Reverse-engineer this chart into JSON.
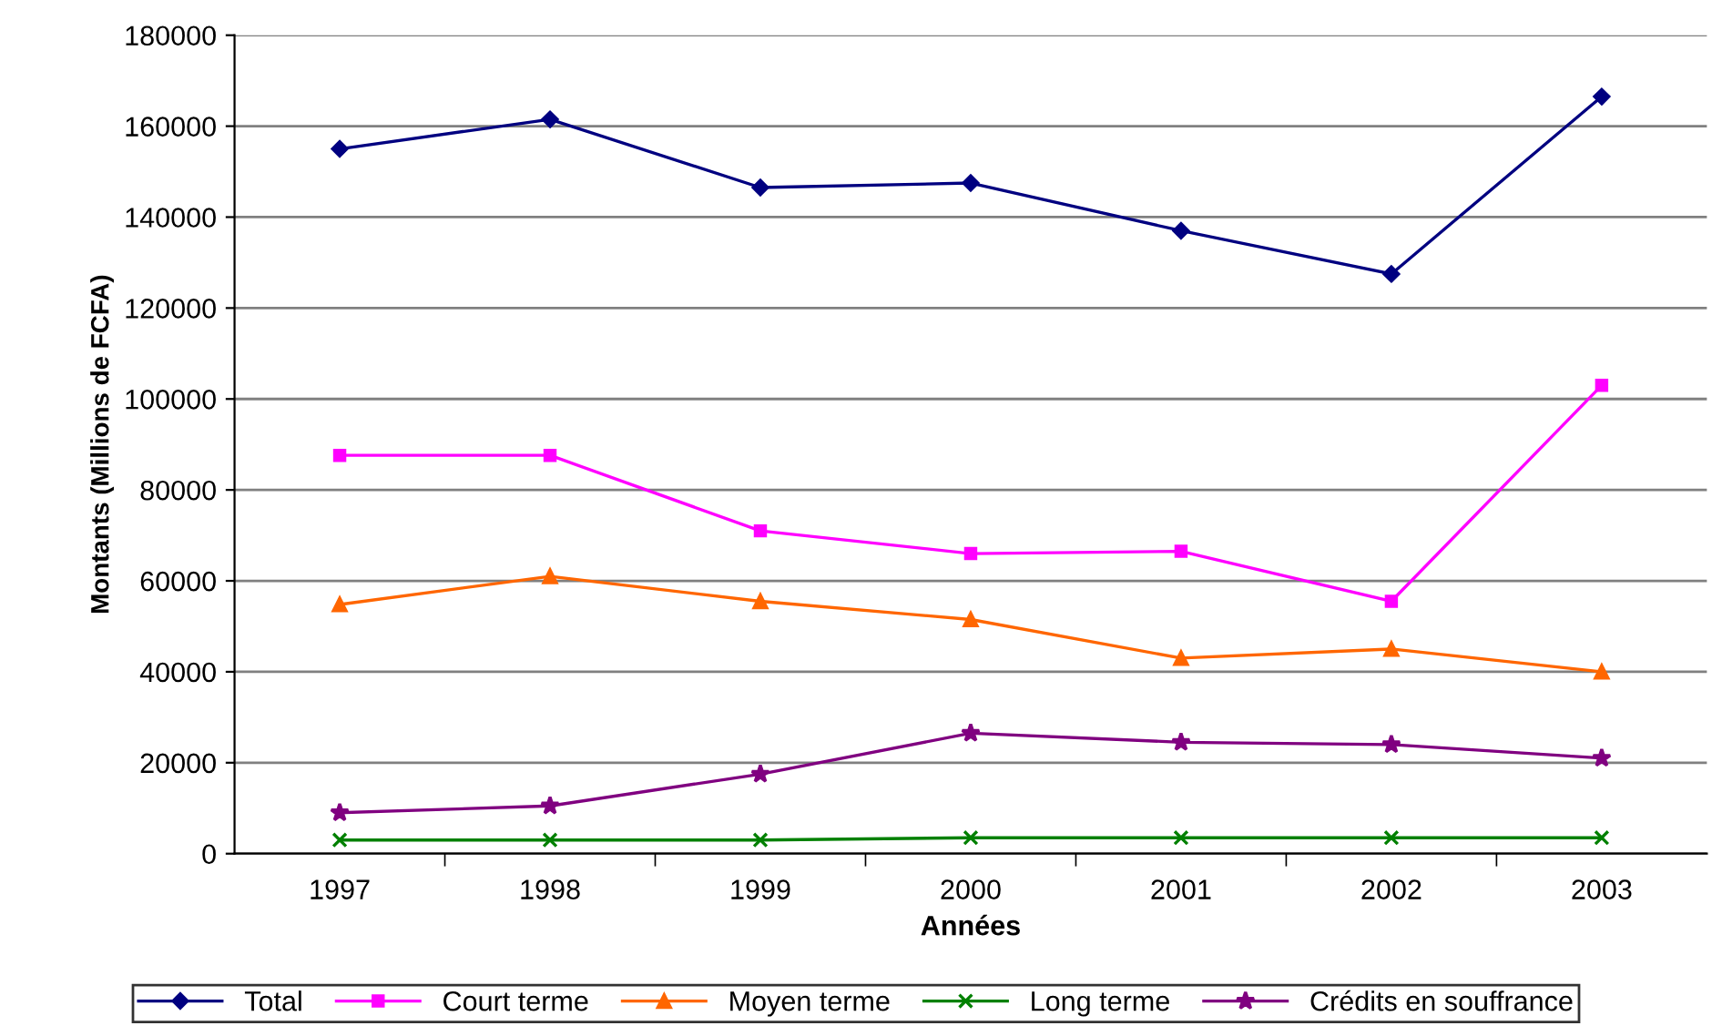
{
  "chart_data": {
    "type": "line",
    "xlabel": "Années",
    "ylabel": "Montants (Millions de FCFA)",
    "categories": [
      "1997",
      "1998",
      "1999",
      "2000",
      "2001",
      "2002",
      "2003"
    ],
    "series": [
      {
        "name": "Total",
        "color": "#000080",
        "marker": "diamond",
        "values": [
          155000,
          161500,
          146500,
          147500,
          137000,
          127500,
          166500
        ]
      },
      {
        "name": "Court terme",
        "color": "#ff00ff",
        "marker": "square",
        "values": [
          87600,
          87600,
          71000,
          66000,
          66500,
          55500,
          103000
        ]
      },
      {
        "name": "Moyen terme",
        "color": "#ff6600",
        "marker": "triangle",
        "values": [
          54800,
          61000,
          55500,
          51500,
          43000,
          45000,
          40000
        ]
      },
      {
        "name": "Long terme",
        "color": "#008000",
        "marker": "cross",
        "values": [
          3000,
          3000,
          3000,
          3500,
          3500,
          3500,
          3500
        ]
      },
      {
        "name": "Crédits en souffrance",
        "color": "#800080",
        "marker": "star",
        "values": [
          9000,
          10500,
          17500,
          26500,
          24500,
          24000,
          21000
        ]
      }
    ],
    "ylim": [
      0,
      180000
    ],
    "yticks": [
      0,
      20000,
      40000,
      60000,
      80000,
      100000,
      120000,
      140000,
      160000,
      180000
    ],
    "grid": "y",
    "legend": "bottom"
  }
}
